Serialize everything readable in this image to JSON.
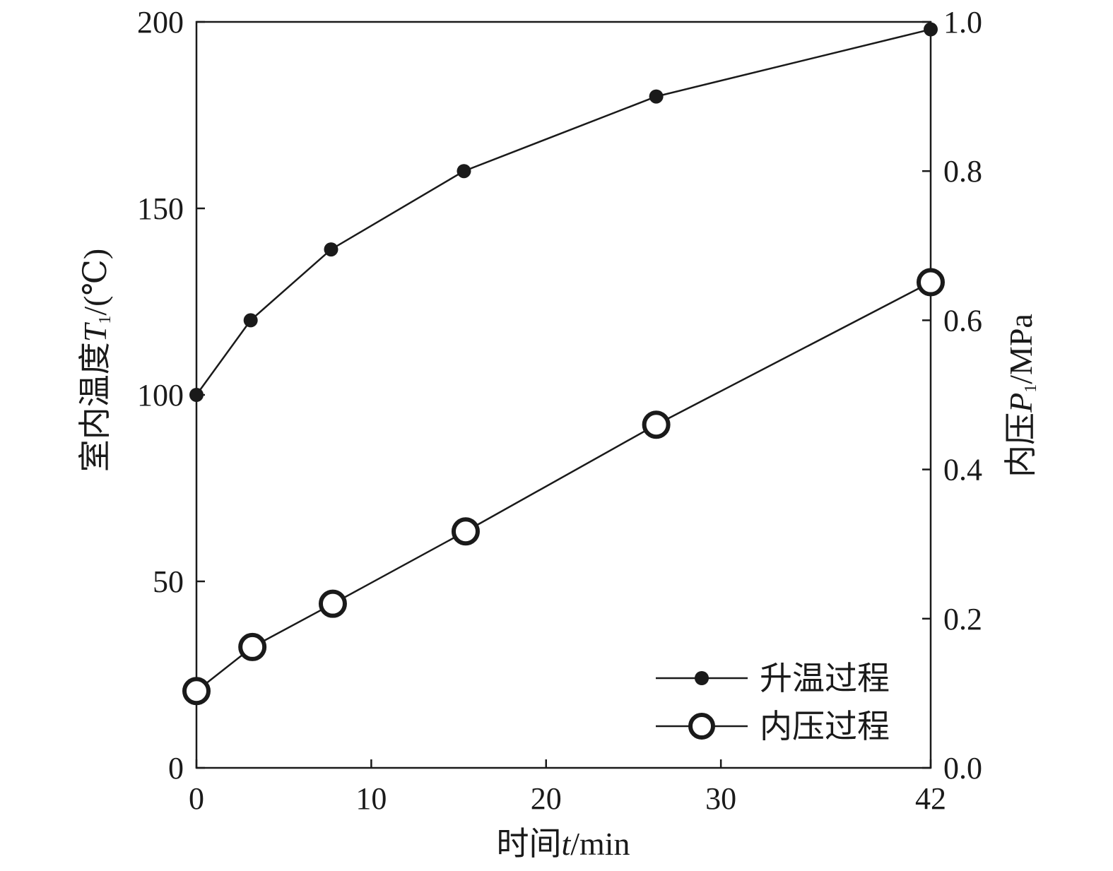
{
  "chart_data": {
    "type": "line",
    "x_axis": {
      "title_prefix": "时间",
      "title_var": "t",
      "title_suffix": "/min",
      "range": [
        0,
        42
      ],
      "ticks": [
        0,
        10,
        20,
        30,
        42
      ],
      "tick_labels": [
        "0",
        "10",
        "20",
        "30",
        "42"
      ]
    },
    "y_axis_left": {
      "title_prefix": "室内温度",
      "title_var": "T",
      "title_sub": "1",
      "title_suffix": "/(℃)",
      "range": [
        0,
        200
      ],
      "ticks": [
        0,
        50,
        100,
        150,
        200
      ],
      "tick_labels": [
        "0",
        "50",
        "100",
        "150",
        "200"
      ]
    },
    "y_axis_right": {
      "title_prefix": "内压",
      "title_var": "P",
      "title_sub": "1",
      "title_suffix": "/MPa",
      "range": [
        0,
        1.0
      ],
      "ticks": [
        0,
        0.2,
        0.4,
        0.6,
        0.8,
        1.0
      ],
      "tick_labels": [
        "0.0",
        "0.2",
        "0.4",
        "0.6",
        "0.8",
        "1.0"
      ]
    },
    "series": [
      {
        "name": "升温过程",
        "axis": "left",
        "marker": "filled-circle",
        "color": "#1a1a1a",
        "x": [
          0,
          3.1,
          7.7,
          15.3,
          26.3,
          42
        ],
        "y": [
          100,
          120,
          139,
          160,
          180,
          198
        ]
      },
      {
        "name": "内压过程",
        "axis": "right",
        "marker": "open-circle",
        "color": "#1a1a1a",
        "x": [
          0,
          3.2,
          7.8,
          15.4,
          26.3,
          42
        ],
        "y": [
          0.103,
          0.162,
          0.22,
          0.317,
          0.46,
          0.651
        ]
      }
    ],
    "legend_position": "bottom-right",
    "grid": false
  }
}
